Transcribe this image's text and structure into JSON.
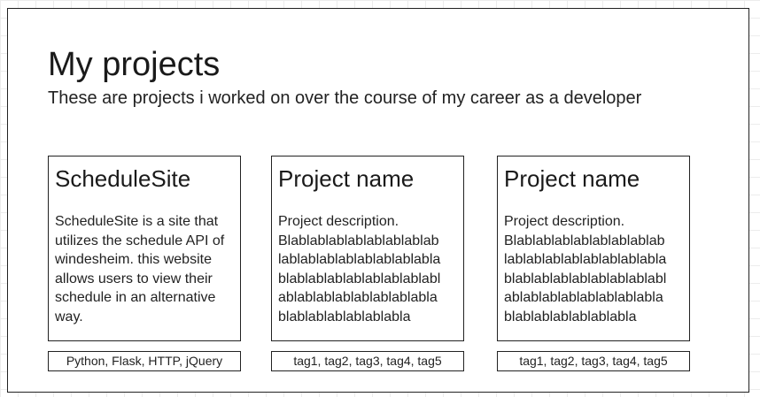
{
  "page": {
    "title": "My projects",
    "subtitle": "These are projects i worked on over the course of my career as a developer"
  },
  "projects": [
    {
      "name": "ScheduleSite",
      "description": "ScheduleSite is a site that utilizes the schedule API of windesheim. this website allows users to view their schedule in an alternative way.",
      "tags": "Python, Flask, HTTP, jQuery"
    },
    {
      "name": "Project name",
      "description_lines": [
        "Project description.",
        "Blablablablablablablablab",
        "lablablablablablablablabla",
        "blablablablablablablablabl",
        "ablablablablablablablabla",
        "blablablablablablabla"
      ],
      "tags": "tag1, tag2, tag3, tag4, tag5"
    },
    {
      "name": "Project name",
      "description_lines": [
        "Project description.",
        "Blablablablablablablablab",
        "lablablablablablablablabla",
        "blablablablablablablablabl",
        "ablablablablablablablabla",
        "blablablablablablabla"
      ],
      "tags": "tag1, tag2, tag3, tag4, tag5"
    }
  ]
}
